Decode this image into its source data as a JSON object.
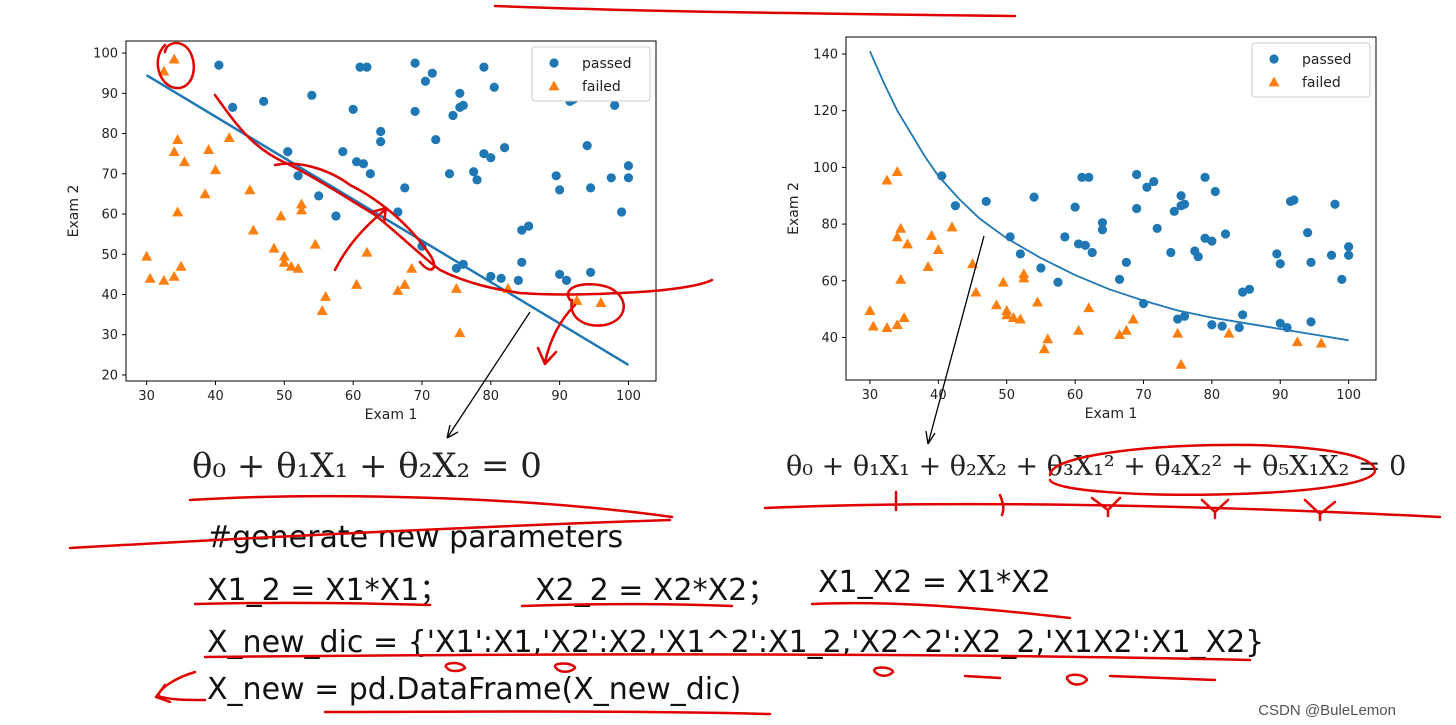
{
  "header": {
    "title_fragment": ""
  },
  "equations": {
    "linear": "θ₀ + θ₁X₁ + θ₂X₂ = 0",
    "quadratic": "θ₀ + θ₁X₁ + θ₂X₂ + θ₃X₁² + θ₄X₂² + θ₅X₁X₂ = 0"
  },
  "code": {
    "line1": "#generate new parameters",
    "line2a": "X1_2 = X1*X1；",
    "line2b": "X2_2 = X2*X2；",
    "line2c": "X1_X2 = X1*X2",
    "line3": "X_new_dic = {'X1':X1,'X2':X2,'X1^2':X1_2,'X2^2':X2_2,'X1X2':X1_X2}",
    "line4": "X_new = pd.DataFrame(X_new_dic)"
  },
  "watermark": "CSDN @BuleLemon",
  "colors": {
    "passed": "#1f77b4",
    "failed": "#ff7f0e",
    "annotation": "#e00000"
  },
  "chart_data": [
    {
      "type": "scatter",
      "xlabel": "Exam 1",
      "ylabel": "Exam 2",
      "xlim": [
        27,
        104
      ],
      "ylim": [
        18.5,
        103
      ],
      "xticks": [
        30,
        40,
        50,
        60,
        70,
        80,
        90,
        100
      ],
      "yticks": [
        20,
        30,
        40,
        50,
        60,
        70,
        80,
        90,
        100
      ],
      "legend": {
        "position": "upper-right",
        "entries": [
          "passed",
          "failed"
        ]
      },
      "series": [
        {
          "name": "passed",
          "marker": "circle",
          "points": [
            [
              40.5,
              97.0
            ],
            [
              47.0,
              88.0
            ],
            [
              54.0,
              89.5
            ],
            [
              61.0,
              96.5
            ],
            [
              62.0,
              96.5
            ],
            [
              69.0,
              97.5
            ],
            [
              70.5,
              93.0
            ],
            [
              71.5,
              95.0
            ],
            [
              79.0,
              96.5
            ],
            [
              80.5,
              91.5
            ],
            [
              75.5,
              90.0
            ],
            [
              75.5,
              86.5
            ],
            [
              76.0,
              87.0
            ],
            [
              74.5,
              84.5
            ],
            [
              72.0,
              78.5
            ],
            [
              64.0,
              80.5
            ],
            [
              64.0,
              78.0
            ],
            [
              60.0,
              86.0
            ],
            [
              42.5,
              86.5
            ],
            [
              69.0,
              85.5
            ],
            [
              82.0,
              76.5
            ],
            [
              79.0,
              75.0
            ],
            [
              80.0,
              74.0
            ],
            [
              58.5,
              75.5
            ],
            [
              60.5,
              73.0
            ],
            [
              61.5,
              72.5
            ],
            [
              62.5,
              70.0
            ],
            [
              52.0,
              69.5
            ],
            [
              74.0,
              70.0
            ],
            [
              77.5,
              70.5
            ],
            [
              78.0,
              68.5
            ],
            [
              89.5,
              69.5
            ],
            [
              97.5,
              69.0
            ],
            [
              100.0,
              69.0
            ],
            [
              100.0,
              72.0
            ],
            [
              90.0,
              66.0
            ],
            [
              94.5,
              66.5
            ],
            [
              67.5,
              66.5
            ],
            [
              55.0,
              64.5
            ],
            [
              57.5,
              59.5
            ],
            [
              66.5,
              60.5
            ],
            [
              84.5,
              56.0
            ],
            [
              85.5,
              57.0
            ],
            [
              70.0,
              52.0
            ],
            [
              76.0,
              47.5
            ],
            [
              75.0,
              46.5
            ],
            [
              80.0,
              44.5
            ],
            [
              84.5,
              48.0
            ],
            [
              90.0,
              45.0
            ],
            [
              91.0,
              43.5
            ],
            [
              94.5,
              45.5
            ],
            [
              99.0,
              60.5
            ],
            [
              94.0,
              77.0
            ],
            [
              91.5,
              88.0
            ],
            [
              92.0,
              88.5
            ],
            [
              98.0,
              87.0
            ],
            [
              50.5,
              75.5
            ],
            [
              81.5,
              44.0
            ],
            [
              84.0,
              43.5
            ]
          ]
        },
        {
          "name": "failed",
          "marker": "triangle",
          "points": [
            [
              34.0,
              98.5
            ],
            [
              32.5,
              95.5
            ],
            [
              34.5,
              78.5
            ],
            [
              34.0,
              75.5
            ],
            [
              35.5,
              73.0
            ],
            [
              39.0,
              76.0
            ],
            [
              42.0,
              79.0
            ],
            [
              38.5,
              65.0
            ],
            [
              40.0,
              71.0
            ],
            [
              45.0,
              66.0
            ],
            [
              34.5,
              60.5
            ],
            [
              49.5,
              59.5
            ],
            [
              52.5,
              62.5
            ],
            [
              52.5,
              61.0
            ],
            [
              45.5,
              56.0
            ],
            [
              48.5,
              51.5
            ],
            [
              50.0,
              49.5
            ],
            [
              50.0,
              48.0
            ],
            [
              51.0,
              47.0
            ],
            [
              52.0,
              46.5
            ],
            [
              54.5,
              52.5
            ],
            [
              62.0,
              50.5
            ],
            [
              30.0,
              49.5
            ],
            [
              35.0,
              47.0
            ],
            [
              34.0,
              44.5
            ],
            [
              30.5,
              44.0
            ],
            [
              32.5,
              43.5
            ],
            [
              56.0,
              39.5
            ],
            [
              55.5,
              36.0
            ],
            [
              60.5,
              42.5
            ],
            [
              66.5,
              41.0
            ],
            [
              67.5,
              42.5
            ],
            [
              68.5,
              46.5
            ],
            [
              75.0,
              41.5
            ],
            [
              75.5,
              30.5
            ],
            [
              82.5,
              41.5
            ],
            [
              92.5,
              38.5
            ],
            [
              96.0,
              38.0
            ]
          ]
        }
      ],
      "decision_boundary": {
        "kind": "line",
        "x": [
          30,
          100
        ],
        "y": [
          94.5,
          22.5
        ]
      }
    },
    {
      "type": "scatter",
      "xlabel": "Exam 1",
      "ylabel": "Exam 2",
      "xlim": [
        26.5,
        104
      ],
      "ylim": [
        25,
        146
      ],
      "xticks": [
        30,
        40,
        50,
        60,
        70,
        80,
        90,
        100
      ],
      "yticks": [
        40,
        60,
        80,
        100,
        120,
        140
      ],
      "legend": {
        "position": "upper-right",
        "entries": [
          "passed",
          "failed"
        ]
      },
      "series": [
        {
          "name": "passed",
          "marker": "circle",
          "points": [
            [
              40.5,
              97.0
            ],
            [
              47.0,
              88.0
            ],
            [
              54.0,
              89.5
            ],
            [
              61.0,
              96.5
            ],
            [
              62.0,
              96.5
            ],
            [
              69.0,
              97.5
            ],
            [
              70.5,
              93.0
            ],
            [
              71.5,
              95.0
            ],
            [
              79.0,
              96.5
            ],
            [
              80.5,
              91.5
            ],
            [
              75.5,
              90.0
            ],
            [
              75.5,
              86.5
            ],
            [
              76.0,
              87.0
            ],
            [
              74.5,
              84.5
            ],
            [
              72.0,
              78.5
            ],
            [
              64.0,
              80.5
            ],
            [
              64.0,
              78.0
            ],
            [
              60.0,
              86.0
            ],
            [
              42.5,
              86.5
            ],
            [
              69.0,
              85.5
            ],
            [
              82.0,
              76.5
            ],
            [
              79.0,
              75.0
            ],
            [
              80.0,
              74.0
            ],
            [
              58.5,
              75.5
            ],
            [
              60.5,
              73.0
            ],
            [
              61.5,
              72.5
            ],
            [
              62.5,
              70.0
            ],
            [
              52.0,
              69.5
            ],
            [
              74.0,
              70.0
            ],
            [
              77.5,
              70.5
            ],
            [
              78.0,
              68.5
            ],
            [
              89.5,
              69.5
            ],
            [
              97.5,
              69.0
            ],
            [
              100.0,
              69.0
            ],
            [
              100.0,
              72.0
            ],
            [
              90.0,
              66.0
            ],
            [
              94.5,
              66.5
            ],
            [
              67.5,
              66.5
            ],
            [
              55.0,
              64.5
            ],
            [
              57.5,
              59.5
            ],
            [
              66.5,
              60.5
            ],
            [
              84.5,
              56.0
            ],
            [
              85.5,
              57.0
            ],
            [
              70.0,
              52.0
            ],
            [
              76.0,
              47.5
            ],
            [
              75.0,
              46.5
            ],
            [
              80.0,
              44.5
            ],
            [
              84.5,
              48.0
            ],
            [
              90.0,
              45.0
            ],
            [
              91.0,
              43.5
            ],
            [
              94.5,
              45.5
            ],
            [
              99.0,
              60.5
            ],
            [
              94.0,
              77.0
            ],
            [
              91.5,
              88.0
            ],
            [
              92.0,
              88.5
            ],
            [
              98.0,
              87.0
            ],
            [
              50.5,
              75.5
            ],
            [
              81.5,
              44.0
            ],
            [
              84.0,
              43.5
            ]
          ]
        },
        {
          "name": "failed",
          "marker": "triangle",
          "points": [
            [
              34.0,
              98.5
            ],
            [
              32.5,
              95.5
            ],
            [
              34.5,
              78.5
            ],
            [
              34.0,
              75.5
            ],
            [
              35.5,
              73.0
            ],
            [
              39.0,
              76.0
            ],
            [
              42.0,
              79.0
            ],
            [
              38.5,
              65.0
            ],
            [
              40.0,
              71.0
            ],
            [
              45.0,
              66.0
            ],
            [
              34.5,
              60.5
            ],
            [
              49.5,
              59.5
            ],
            [
              52.5,
              62.5
            ],
            [
              52.5,
              61.0
            ],
            [
              45.5,
              56.0
            ],
            [
              48.5,
              51.5
            ],
            [
              50.0,
              49.5
            ],
            [
              50.0,
              48.0
            ],
            [
              51.0,
              47.0
            ],
            [
              52.0,
              46.5
            ],
            [
              54.5,
              52.5
            ],
            [
              62.0,
              50.5
            ],
            [
              30.0,
              49.5
            ],
            [
              35.0,
              47.0
            ],
            [
              34.0,
              44.5
            ],
            [
              30.5,
              44.0
            ],
            [
              32.5,
              43.5
            ],
            [
              56.0,
              39.5
            ],
            [
              55.5,
              36.0
            ],
            [
              60.5,
              42.5
            ],
            [
              66.5,
              41.0
            ],
            [
              67.5,
              42.5
            ],
            [
              68.5,
              46.5
            ],
            [
              75.0,
              41.5
            ],
            [
              75.5,
              30.5
            ],
            [
              82.5,
              41.5
            ],
            [
              92.5,
              38.5
            ],
            [
              96.0,
              38.0
            ]
          ]
        }
      ],
      "decision_boundary": {
        "kind": "curve",
        "points": [
          [
            30,
            141
          ],
          [
            32,
            130
          ],
          [
            34,
            120
          ],
          [
            36,
            112
          ],
          [
            38,
            104
          ],
          [
            40,
            97
          ],
          [
            43,
            89
          ],
          [
            46,
            82
          ],
          [
            50,
            75
          ],
          [
            55,
            68
          ],
          [
            60,
            62
          ],
          [
            65,
            57
          ],
          [
            70,
            53
          ],
          [
            75,
            49.5
          ],
          [
            80,
            47
          ],
          [
            85,
            45
          ],
          [
            90,
            43
          ],
          [
            95,
            41
          ],
          [
            100,
            39
          ]
        ]
      }
    }
  ]
}
